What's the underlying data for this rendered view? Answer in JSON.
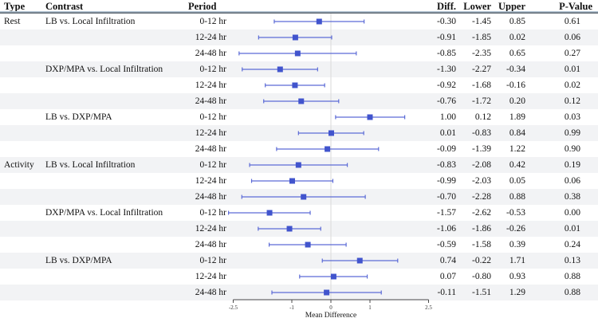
{
  "table": {
    "headers": {
      "type": "Type",
      "contrast": "Contrast",
      "period": "Period",
      "diff": "Diff.",
      "lower": "Lower",
      "upper": "Upper",
      "pvalue": "P-Value"
    },
    "rows": [
      {
        "type": "Rest",
        "contrast": "LB vs. Local Infiltration",
        "period": "0-12 hr",
        "diff": "-0.30",
        "lower": "-1.45",
        "upper": "0.85",
        "pvalue": "0.61"
      },
      {
        "type": "",
        "contrast": "",
        "period": "12-24 hr",
        "diff": "-0.91",
        "lower": "-1.85",
        "upper": "0.02",
        "pvalue": "0.06"
      },
      {
        "type": "",
        "contrast": "",
        "period": "24-48 hr",
        "diff": "-0.85",
        "lower": "-2.35",
        "upper": "0.65",
        "pvalue": "0.27"
      },
      {
        "type": "",
        "contrast": "DXP/MPA vs. Local Infiltration",
        "period": "0-12 hr",
        "diff": "-1.30",
        "lower": "-2.27",
        "upper": "-0.34",
        "pvalue": "0.01"
      },
      {
        "type": "",
        "contrast": "",
        "period": "12-24 hr",
        "diff": "-0.92",
        "lower": "-1.68",
        "upper": "-0.16",
        "pvalue": "0.02"
      },
      {
        "type": "",
        "contrast": "",
        "period": "24-48 hr",
        "diff": "-0.76",
        "lower": "-1.72",
        "upper": "0.20",
        "pvalue": "0.12"
      },
      {
        "type": "",
        "contrast": "LB vs. DXP/MPA",
        "period": "0-12 hr",
        "diff": "1.00",
        "lower": "0.12",
        "upper": "1.89",
        "pvalue": "0.03"
      },
      {
        "type": "",
        "contrast": "",
        "period": "12-24 hr",
        "diff": "0.01",
        "lower": "-0.83",
        "upper": "0.84",
        "pvalue": "0.99"
      },
      {
        "type": "",
        "contrast": "",
        "period": "24-48 hr",
        "diff": "-0.09",
        "lower": "-1.39",
        "upper": "1.22",
        "pvalue": "0.90"
      },
      {
        "type": "Activity",
        "contrast": "LB vs. Local Infiltration",
        "period": "0-12 hr",
        "diff": "-0.83",
        "lower": "-2.08",
        "upper": "0.42",
        "pvalue": "0.19"
      },
      {
        "type": "",
        "contrast": "",
        "period": "12-24 hr",
        "diff": "-0.99",
        "lower": "-2.03",
        "upper": "0.05",
        "pvalue": "0.06"
      },
      {
        "type": "",
        "contrast": "",
        "period": "24-48 hr",
        "diff": "-0.70",
        "lower": "-2.28",
        "upper": "0.88",
        "pvalue": "0.38"
      },
      {
        "type": "",
        "contrast": "DXP/MPA vs. Local Infiltration",
        "period": "0-12 hr",
        "diff": "-1.57",
        "lower": "-2.62",
        "upper": "-0.53",
        "pvalue": "0.00"
      },
      {
        "type": "",
        "contrast": "",
        "period": "12-24 hr",
        "diff": "-1.06",
        "lower": "-1.86",
        "upper": "-0.26",
        "pvalue": "0.01"
      },
      {
        "type": "",
        "contrast": "",
        "period": "24-48 hr",
        "diff": "-0.59",
        "lower": "-1.58",
        "upper": "0.39",
        "pvalue": "0.24"
      },
      {
        "type": "",
        "contrast": "LB vs. DXP/MPA",
        "period": "0-12 hr",
        "diff": "0.74",
        "lower": "-0.22",
        "upper": "1.71",
        "pvalue": "0.13"
      },
      {
        "type": "",
        "contrast": "",
        "period": "12-24 hr",
        "diff": "0.07",
        "lower": "-0.80",
        "upper": "0.93",
        "pvalue": "0.88"
      },
      {
        "type": "",
        "contrast": "",
        "period": "24-48 hr",
        "diff": "-0.11",
        "lower": "-1.51",
        "upper": "1.29",
        "pvalue": "0.88"
      }
    ]
  },
  "chart_data": {
    "type": "scatter",
    "style": "forest-plot-with-error-bars",
    "xlabel": "Mean Difference",
    "xlim": [
      -2.5,
      2.5
    ],
    "xticks": [
      "-2.5",
      "-1",
      "0",
      "1",
      "2.5"
    ],
    "reference_line_x": 0,
    "grid": false,
    "categories": [
      "Rest | LB vs. Local Infiltration | 0-12 hr",
      "Rest | LB vs. Local Infiltration | 12-24 hr",
      "Rest | LB vs. Local Infiltration | 24-48 hr",
      "Rest | DXP/MPA vs. Local Infiltration | 0-12 hr",
      "Rest | DXP/MPA vs. Local Infiltration | 12-24 hr",
      "Rest | DXP/MPA vs. Local Infiltration | 24-48 hr",
      "Rest | LB vs. DXP/MPA | 0-12 hr",
      "Rest | LB vs. DXP/MPA | 12-24 hr",
      "Rest | LB vs. DXP/MPA | 24-48 hr",
      "Activity | LB vs. Local Infiltration | 0-12 hr",
      "Activity | LB vs. Local Infiltration | 12-24 hr",
      "Activity | LB vs. Local Infiltration | 24-48 hr",
      "Activity | DXP/MPA vs. Local Infiltration | 0-12 hr",
      "Activity | DXP/MPA vs. Local Infiltration | 12-24 hr",
      "Activity | DXP/MPA vs. Local Infiltration | 24-48 hr",
      "Activity | LB vs. DXP/MPA | 0-12 hr",
      "Activity | LB vs. DXP/MPA | 12-24 hr",
      "Activity | LB vs. DXP/MPA | 24-48 hr"
    ],
    "series": [
      {
        "name": "diff",
        "values": [
          -0.3,
          -0.91,
          -0.85,
          -1.3,
          -0.92,
          -0.76,
          1.0,
          0.01,
          -0.09,
          -0.83,
          -0.99,
          -0.7,
          -1.57,
          -1.06,
          -0.59,
          0.74,
          0.07,
          -0.11
        ]
      },
      {
        "name": "lower",
        "values": [
          -1.45,
          -1.85,
          -2.35,
          -2.27,
          -1.68,
          -1.72,
          0.12,
          -0.83,
          -1.39,
          -2.08,
          -2.03,
          -2.28,
          -2.62,
          -1.86,
          -1.58,
          -0.22,
          -0.8,
          -1.51
        ]
      },
      {
        "name": "upper",
        "values": [
          0.85,
          0.02,
          0.65,
          -0.34,
          -0.16,
          0.2,
          1.89,
          0.84,
          1.22,
          0.42,
          0.05,
          0.88,
          -0.53,
          -0.26,
          0.39,
          1.71,
          0.93,
          1.29
        ]
      }
    ]
  },
  "colors": {
    "marker": "#4154cd",
    "ci_line": "#5c6bd6",
    "zero_line": "#d9d9d9",
    "axis": "#4a4a4a",
    "stripe": "#f2f3f5",
    "separator_light": "#b3c5d4",
    "separator_dark": "#5a646e"
  }
}
